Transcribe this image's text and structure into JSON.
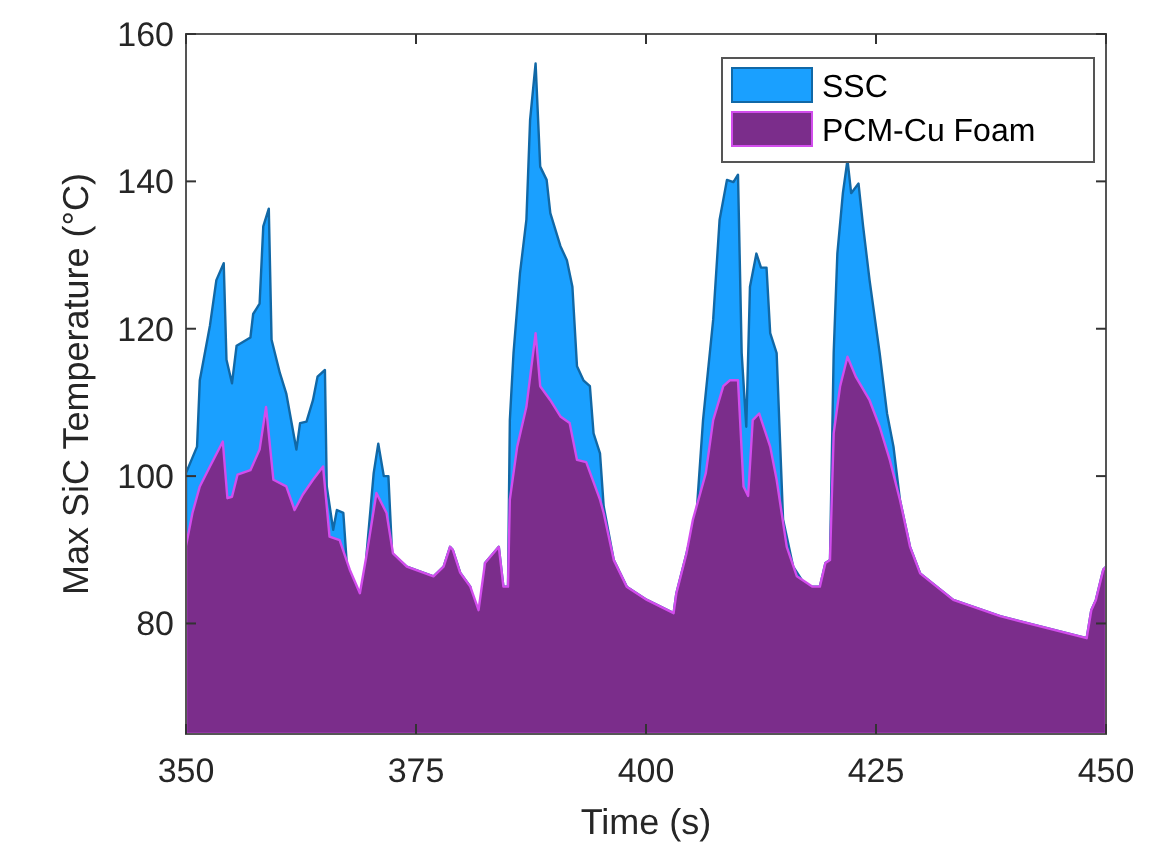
{
  "chart_data": {
    "type": "area",
    "xlabel": "Time (s)",
    "ylabel": "Max SiC Temperature (°C)",
    "xlim": [
      350,
      450
    ],
    "ylim": [
      65,
      160
    ],
    "xticks": [
      350,
      375,
      400,
      425,
      450
    ],
    "yticks": [
      80,
      100,
      120,
      140,
      160
    ],
    "grid": false,
    "legend": "top right",
    "series": [
      {
        "name": "SSC",
        "color": "#1aa0ff",
        "x": [
          350,
          351.2,
          351.5,
          352.6,
          353.3,
          354.1,
          354.4,
          355,
          355.5,
          357,
          357.3,
          358,
          358.4,
          359,
          359.3,
          360.2,
          360.9,
          362,
          362.4,
          363.1,
          363.8,
          364.3,
          365.1,
          365.3,
          366,
          366.4,
          367.1,
          367.5,
          368.9,
          369.6,
          370.4,
          370.9,
          371.5,
          372,
          372.4,
          374,
          376.9,
          378,
          378.7,
          379,
          379.8,
          380.9,
          381.8,
          382.5,
          384,
          384.5,
          385,
          385.2,
          385.6,
          386.3,
          387,
          387.4,
          388,
          388.5,
          389.2,
          389.6,
          390.7,
          391.4,
          392,
          392.5,
          393.2,
          393.9,
          394.3,
          395,
          395.4,
          396.5,
          397.9,
          400.1,
          403,
          403.3,
          404.4,
          405.5,
          406.2,
          407.3,
          408,
          408.8,
          409.5,
          410,
          410.4,
          410.9,
          411.3,
          412,
          412.5,
          413.1,
          413.5,
          414.2,
          414.9,
          416,
          417.4,
          418.9,
          419.5,
          420,
          420.4,
          420.8,
          421.4,
          421.9,
          422.3,
          423.1,
          423.6,
          424.3,
          425.4,
          426.2,
          426.9,
          427.6,
          428.7,
          429.8,
          433.4,
          438.5,
          447.9,
          448.4,
          448.9,
          449.7,
          450
        ],
        "values": [
          100.4,
          104,
          113,
          120.4,
          126.6,
          128.9,
          115.8,
          112.6,
          117.7,
          118.8,
          122,
          123.4,
          133.9,
          136.3,
          118.5,
          114,
          111.2,
          103.6,
          107.2,
          107.4,
          110.3,
          113.5,
          114.4,
          98.6,
          92.7,
          95.4,
          95,
          87.7,
          null,
          89.1,
          100.4,
          104.4,
          100,
          100,
          89.5,
          87.7,
          86.4,
          87.7,
          90.4,
          90,
          86.9,
          85,
          null,
          88.2,
          90.4,
          85,
          85,
          107.6,
          116.7,
          127.5,
          134.8,
          148.3,
          156,
          142,
          140.2,
          135.7,
          131.2,
          129.3,
          125.7,
          114.9,
          113,
          112.2,
          105.8,
          103.1,
          95.9,
          88.6,
          85,
          83.2,
          81.4,
          84.1,
          89.5,
          95,
          107.6,
          121.2,
          134.8,
          140.2,
          139.9,
          140.9,
          116.7,
          106.7,
          125.7,
          130.2,
          128.3,
          128.3,
          119.4,
          116.7,
          94.1,
          87.7,
          85,
          85,
          88.2,
          88.6,
          116.7,
          130.2,
          138.4,
          142.9,
          138.4,
          139.7,
          133.9,
          126.6,
          116.7,
          108.5,
          104,
          96.8,
          90.4,
          86.8,
          83.2,
          81,
          78,
          81.8,
          83.2,
          87.3,
          87.7
        ]
      },
      {
        "name": "PCM-Cu Foam",
        "color": "#7b2d8b",
        "x": [
          350,
          350.7,
          351.5,
          352.6,
          354,
          354.5,
          355,
          355.6,
          357,
          358,
          358.7,
          359.5,
          360.9,
          361.8,
          362.7,
          363.8,
          364.9,
          365.6,
          366.7,
          367.8,
          368.9,
          369.6,
          370.7,
          371.8,
          372.5,
          374,
          376.9,
          378,
          378.7,
          379,
          379.8,
          380.9,
          381.8,
          382.5,
          384,
          384.5,
          385,
          385.2,
          386,
          387,
          388,
          388.5,
          389.6,
          390.7,
          391.7,
          392.5,
          393.5,
          395,
          395.4,
          396.5,
          397.9,
          400.1,
          403,
          403.3,
          404.4,
          405.1,
          406.5,
          407.3,
          408.4,
          409.1,
          410,
          410.6,
          411.1,
          411.6,
          412.3,
          413.5,
          414.2,
          415.3,
          416.4,
          418.1,
          418.9,
          419.5,
          420,
          420.4,
          421.1,
          421.9,
          422.8,
          424.3,
          425.4,
          426.5,
          427.6,
          428.7,
          429.8,
          433.4,
          438.5,
          447.9,
          448.4,
          448.9,
          449.7,
          450
        ],
        "values": [
          90.5,
          95,
          98.6,
          101.3,
          104.7,
          97,
          97.2,
          100.2,
          100.8,
          103.6,
          109.4,
          99.5,
          98.6,
          95.4,
          97.5,
          99.5,
          101.3,
          91.8,
          91.3,
          87.3,
          84.1,
          89.1,
          97.7,
          95,
          89.5,
          87.7,
          86.4,
          87.7,
          90.4,
          90,
          86.9,
          85,
          81.8,
          88.2,
          90.4,
          85,
          85,
          96.8,
          104,
          109.4,
          119.4,
          112.2,
          110.3,
          108.1,
          107.2,
          102.2,
          101.9,
          96.8,
          95,
          88.6,
          85,
          83.2,
          81.4,
          84.1,
          89.5,
          94.1,
          100.4,
          107.6,
          112.2,
          113,
          113,
          98.6,
          97.3,
          107.6,
          108.5,
          104,
          99.5,
          90.4,
          86.4,
          85,
          85,
          88.2,
          88.6,
          105.8,
          112.2,
          116.2,
          113.5,
          110.3,
          106.7,
          102.2,
          96.8,
          90.4,
          86.8,
          83.2,
          81,
          78,
          81.8,
          83.2,
          87.3,
          87.7
        ]
      }
    ]
  }
}
